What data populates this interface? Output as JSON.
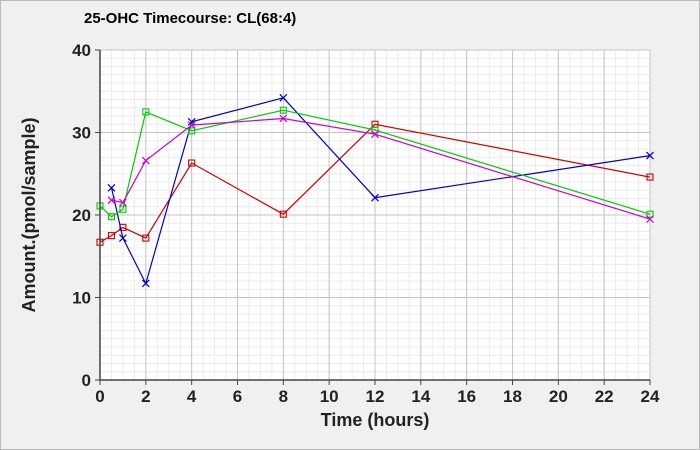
{
  "chart_data": {
    "type": "line",
    "title": "25-OHC Timecourse: CL(68:4)",
    "xlabel": "Time (hours)",
    "ylabel": "Amount.(pmol/sample)",
    "xlim": [
      0,
      24
    ],
    "ylim": [
      0,
      40
    ],
    "x_ticks": [
      0,
      2,
      4,
      6,
      8,
      10,
      12,
      14,
      16,
      18,
      20,
      22,
      24
    ],
    "y_ticks": [
      0,
      10,
      20,
      30,
      40
    ],
    "x_minor_step": 0.5,
    "y_minor_step": 1,
    "grid": true,
    "legend": "none",
    "series": [
      {
        "color": "#cc0000",
        "marker": "square",
        "x": [
          0,
          0.5,
          1,
          2,
          4,
          8,
          12,
          24
        ],
        "values": [
          16.7,
          17.5,
          18.5,
          17.2,
          26.3,
          20.1,
          31.0,
          24.6
        ]
      },
      {
        "color": "#0000cc",
        "marker": "x",
        "x": [
          0.5,
          1,
          2,
          4,
          8,
          12,
          24
        ],
        "values": [
          23.3,
          17.2,
          11.7,
          31.3,
          34.2,
          22.1,
          27.2
        ]
      },
      {
        "color": "#00cc00",
        "marker": "square",
        "x": [
          0,
          0.5,
          1,
          2,
          4,
          8,
          12,
          24
        ],
        "values": [
          21.1,
          19.8,
          20.7,
          32.5,
          30.2,
          32.7,
          30.3,
          20.1
        ]
      },
      {
        "color": "#cc00cc",
        "marker": "x",
        "x": [
          0.5,
          1,
          2,
          4,
          8,
          12,
          24
        ],
        "values": [
          21.8,
          21.5,
          26.6,
          30.9,
          31.7,
          29.8,
          19.5
        ]
      }
    ]
  }
}
